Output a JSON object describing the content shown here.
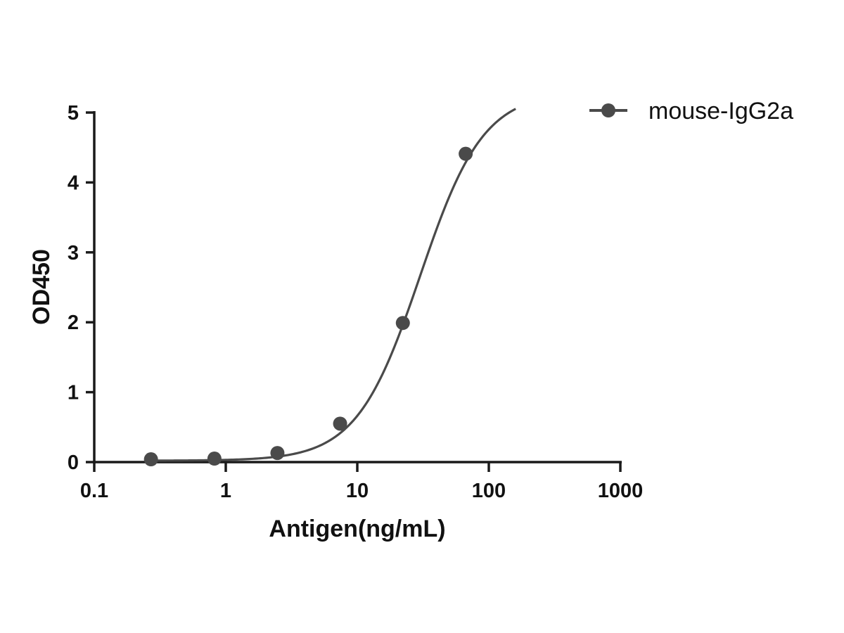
{
  "chart_data": {
    "type": "scatter",
    "title": "",
    "xlabel": "Antigen(ng/mL)",
    "ylabel": "OD450",
    "x_scale": "log",
    "xlim": [
      0.1,
      1000
    ],
    "ylim": [
      0,
      5
    ],
    "x_ticks": [
      0.1,
      1,
      10,
      100,
      1000
    ],
    "x_tick_labels": [
      "0.1",
      "1",
      "10",
      "100",
      "1000"
    ],
    "y_ticks": [
      0,
      1,
      2,
      3,
      4,
      5
    ],
    "y_tick_labels": [
      "0",
      "1",
      "2",
      "3",
      "4",
      "5"
    ],
    "grid": false,
    "legend_position": "top-right",
    "series": [
      {
        "name": "mouse-IgG2a",
        "color": "#4a4a4a",
        "marker": "circle",
        "x": [
          0.27,
          0.82,
          2.47,
          7.4,
          22.2,
          66.7
        ],
        "y": [
          0.04,
          0.05,
          0.13,
          0.55,
          1.99,
          4.41
        ],
        "fit": {
          "model": "4PL",
          "bottom": 0.02,
          "top": 5.3,
          "ec50": 30,
          "hill": 1.8,
          "x_range": [
            0.27,
            160
          ]
        }
      }
    ]
  }
}
